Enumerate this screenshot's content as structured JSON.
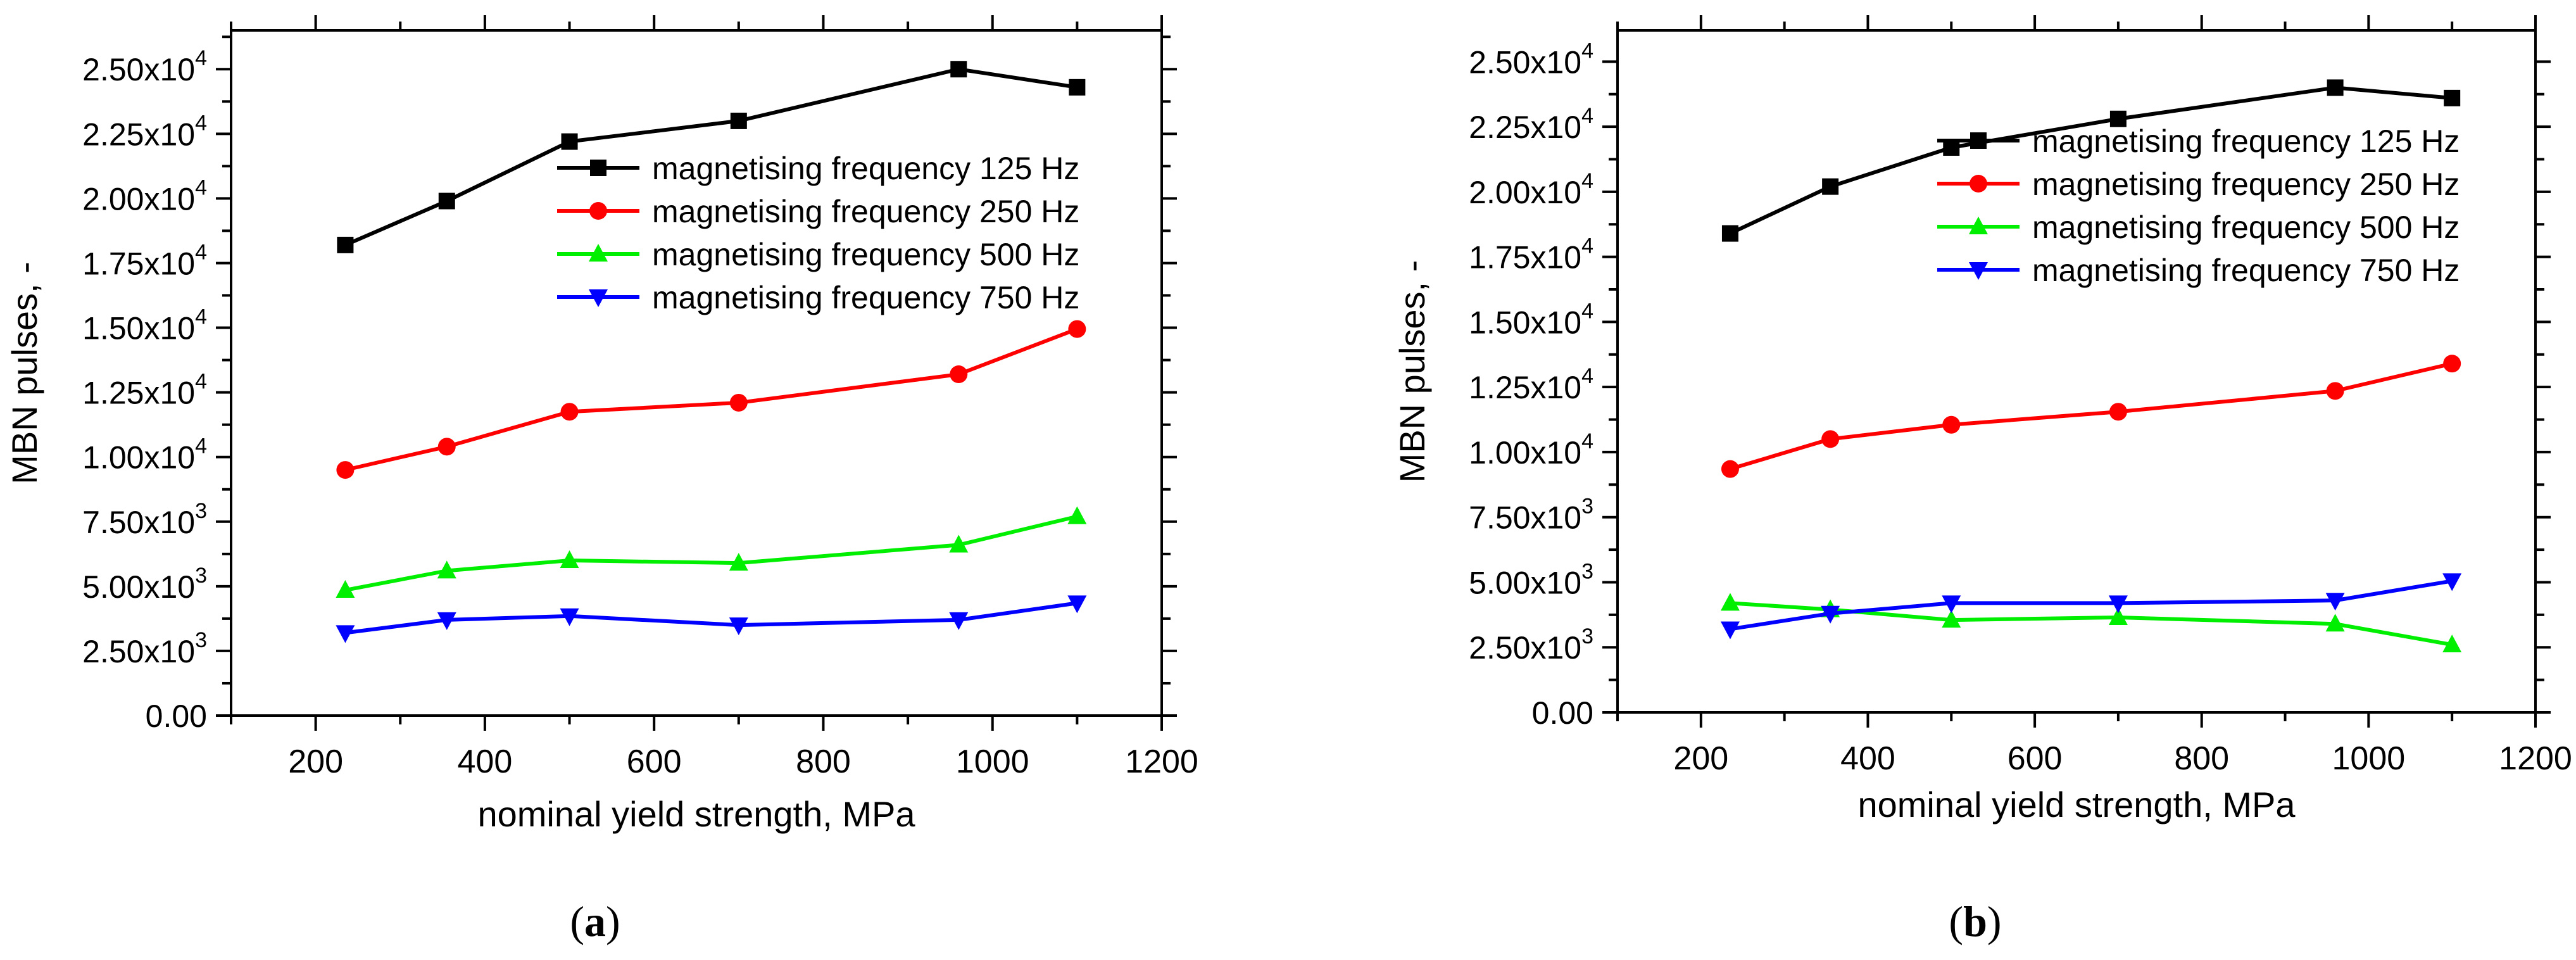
{
  "chart_data": [
    {
      "type": "line",
      "panel_label": "a",
      "xlabel": "nominal yield strength, MPa",
      "ylabel": "MBN pulses, -",
      "xlim": [
        100,
        1200
      ],
      "ylim": [
        0,
        26500
      ],
      "x_ticks": [
        "200",
        "400",
        "600",
        "800",
        "1000",
        "1200"
      ],
      "y_ticks": [
        {
          "mant": "0.00",
          "exp": ""
        },
        {
          "mant": "2.50x10",
          "exp": "3"
        },
        {
          "mant": "5.00x10",
          "exp": "3"
        },
        {
          "mant": "7.50x10",
          "exp": "3"
        },
        {
          "mant": "1.00x10",
          "exp": "4"
        },
        {
          "mant": "1.25x10",
          "exp": "4"
        },
        {
          "mant": "1.50x10",
          "exp": "4"
        },
        {
          "mant": "1.75x10",
          "exp": "4"
        },
        {
          "mant": "2.00x10",
          "exp": "4"
        },
        {
          "mant": "2.25x10",
          "exp": "4"
        },
        {
          "mant": "2.50x10",
          "exp": "4"
        }
      ],
      "legend_position": "upper-right",
      "x": [
        235,
        355,
        500,
        700,
        960,
        1100
      ],
      "series": [
        {
          "name": "magnetising frequency 125 Hz",
          "color": "#000000",
          "marker": "square",
          "values": [
            18200,
            19900,
            22200,
            23000,
            25000,
            24300
          ]
        },
        {
          "name": "magnetising frequency 250 Hz",
          "color": "#ff0000",
          "marker": "circle",
          "values": [
            9500,
            10400,
            11750,
            12100,
            13200,
            14950
          ]
        },
        {
          "name": "magnetising frequency 500 Hz",
          "color": "#00ee00",
          "marker": "triangle-up",
          "values": [
            4850,
            5600,
            6000,
            5900,
            6600,
            7700
          ]
        },
        {
          "name": "magnetising frequency 750 Hz",
          "color": "#0000ff",
          "marker": "triangle-down",
          "values": [
            3200,
            3700,
            3850,
            3500,
            3700,
            4350
          ]
        }
      ]
    },
    {
      "type": "line",
      "panel_label": "b",
      "xlabel": "nominal yield strength, MPa",
      "ylabel": "MBN pulses, -",
      "xlim": [
        100,
        1200
      ],
      "ylim": [
        0,
        26200
      ],
      "x_ticks": [
        "200",
        "400",
        "600",
        "800",
        "1000",
        "1200"
      ],
      "y_ticks": [
        {
          "mant": "0.00",
          "exp": ""
        },
        {
          "mant": "2.50x10",
          "exp": "3"
        },
        {
          "mant": "5.00x10",
          "exp": "3"
        },
        {
          "mant": "7.50x10",
          "exp": "3"
        },
        {
          "mant": "1.00x10",
          "exp": "4"
        },
        {
          "mant": "1.25x10",
          "exp": "4"
        },
        {
          "mant": "1.50x10",
          "exp": "4"
        },
        {
          "mant": "1.75x10",
          "exp": "4"
        },
        {
          "mant": "2.00x10",
          "exp": "4"
        },
        {
          "mant": "2.25x10",
          "exp": "4"
        },
        {
          "mant": "2.50x10",
          "exp": "4"
        }
      ],
      "legend_position": "upper-right",
      "x": [
        235,
        355,
        500,
        700,
        960,
        1100
      ],
      "series": [
        {
          "name": "magnetising frequency 125 Hz",
          "color": "#000000",
          "marker": "square",
          "values": [
            18400,
            20200,
            21700,
            22800,
            24000,
            23600
          ]
        },
        {
          "name": "magnetising frequency 250 Hz",
          "color": "#ff0000",
          "marker": "circle",
          "values": [
            9350,
            10500,
            11050,
            11550,
            12350,
            13400
          ]
        },
        {
          "name": "magnetising frequency 500 Hz",
          "color": "#00ee00",
          "marker": "triangle-up",
          "values": [
            4200,
            3950,
            3550,
            3650,
            3400,
            2600
          ]
        },
        {
          "name": "magnetising frequency 750 Hz",
          "color": "#0000ff",
          "marker": "triangle-down",
          "values": [
            3200,
            3800,
            4200,
            4200,
            4300,
            5050
          ]
        }
      ]
    }
  ]
}
